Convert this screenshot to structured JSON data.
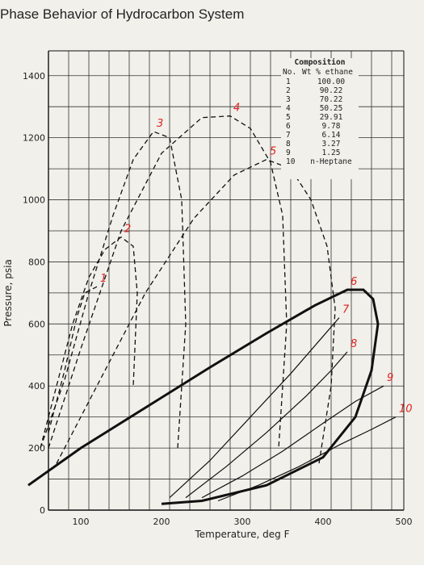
{
  "page": {
    "title": "Phase Behavior of Hydrocarbon System"
  },
  "chart_data": {
    "type": "line",
    "title": "Phase Behavior of Hydrocarbon System",
    "xlabel": "Temperature, deg F",
    "ylabel": "Pressure, psia",
    "xlim": [
      35,
      535
    ],
    "ylim": [
      0,
      1480
    ],
    "x_ticks": [
      "100",
      "200",
      "300",
      "400",
      "500"
    ],
    "x_tick_values": [
      100,
      200,
      300,
      400,
      500
    ],
    "y_ticks": [
      "0",
      "200",
      "400",
      "600",
      "800",
      "1000",
      "1200",
      "1400"
    ],
    "y_tick_values": [
      0,
      200,
      400,
      600,
      800,
      1000,
      1200,
      1400
    ],
    "grid": true,
    "legend": {
      "title": "Composition",
      "header_no": "No.",
      "header_wt": "Wt % ethane",
      "entries": [
        {
          "no": "1",
          "wt": "100.00"
        },
        {
          "no": "2",
          "wt": "90.22"
        },
        {
          "no": "3",
          "wt": "70.22"
        },
        {
          "no": "4",
          "wt": "50.25"
        },
        {
          "no": "5",
          "wt": "29.91"
        },
        {
          "no": "6",
          "wt": "9.78"
        },
        {
          "no": "7",
          "wt": "6.14"
        },
        {
          "no": "8",
          "wt": "3.27"
        },
        {
          "no": "9",
          "wt": "1.25"
        },
        {
          "no": "10",
          "wt": "n-Heptane"
        }
      ],
      "placement": "top-right"
    },
    "series": [
      {
        "name": "1",
        "style": "dashed",
        "x": [
          60,
          80,
          95,
          105,
          120
        ],
        "y": [
          250,
          450,
          620,
          700,
          720
        ]
      },
      {
        "name": "2",
        "style": "dashed",
        "x": [
          50,
          70,
          90,
          110,
          130,
          150,
          165,
          170,
          165
        ],
        "y": [
          200,
          400,
          600,
          750,
          840,
          880,
          850,
          700,
          400
        ]
      },
      {
        "name": "3",
        "style": "dashed",
        "x": [
          50,
          80,
          110,
          140,
          165,
          190,
          210,
          225,
          230,
          220
        ],
        "y": [
          200,
          420,
          700,
          950,
          1130,
          1220,
          1200,
          1000,
          600,
          200
        ]
      },
      {
        "name": "4",
        "style": "dashed",
        "x": [
          60,
          100,
          150,
          200,
          250,
          285,
          310,
          335,
          350,
          355,
          345
        ],
        "y": [
          200,
          520,
          900,
          1150,
          1265,
          1270,
          1230,
          1120,
          950,
          600,
          200
        ]
      },
      {
        "name": "5",
        "style": "dashed",
        "x": [
          70,
          120,
          180,
          240,
          290,
          330,
          360,
          385,
          405,
          415,
          410,
          395
        ],
        "y": [
          150,
          400,
          700,
          940,
          1080,
          1130,
          1100,
          1000,
          850,
          650,
          400,
          150
        ]
      },
      {
        "name": "6",
        "style": "solid",
        "x": [
          35,
          100,
          180,
          260,
          330,
          390,
          430,
          450,
          462,
          468,
          460,
          440,
          400,
          330,
          250,
          200
        ],
        "y": [
          80,
          200,
          330,
          460,
          570,
          660,
          710,
          710,
          680,
          600,
          450,
          300,
          170,
          80,
          30,
          20
        ]
      },
      {
        "name": "7",
        "style": "solid-thin",
        "x": [
          210,
          260,
          310,
          360,
          400,
          420
        ],
        "y": [
          40,
          160,
          300,
          440,
          560,
          620
        ]
      },
      {
        "name": "8",
        "style": "solid-thin",
        "x": [
          230,
          280,
          330,
          380,
          410,
          430
        ],
        "y": [
          40,
          140,
          250,
          370,
          450,
          510
        ]
      },
      {
        "name": "9",
        "style": "solid-thin",
        "x": [
          250,
          300,
          350,
          400,
          440,
          475
        ],
        "y": [
          40,
          110,
          190,
          280,
          350,
          400
        ]
      },
      {
        "name": "10",
        "style": "solid-thin",
        "x": [
          270,
          320,
          370,
          420,
          460,
          490
        ],
        "y": [
          30,
          80,
          140,
          210,
          260,
          300
        ]
      }
    ]
  }
}
